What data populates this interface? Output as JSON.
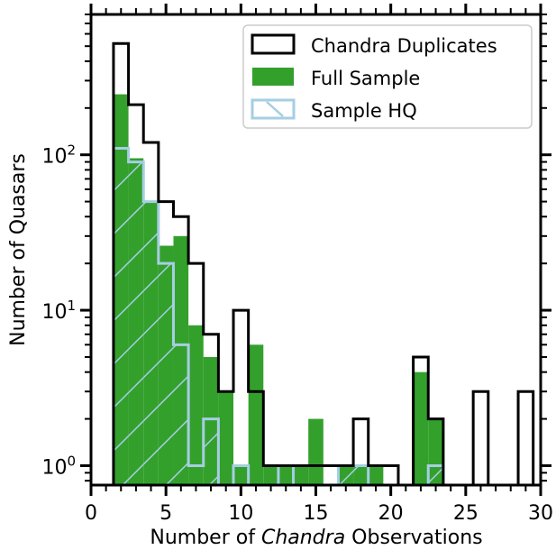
{
  "chart_data": {
    "type": "bar",
    "xlabel_parts": [
      "Number of ",
      "Chandra",
      " Observations"
    ],
    "ylabel": "Number of Quasars",
    "xlim": [
      0,
      30
    ],
    "ylim": [
      0.75,
      800
    ],
    "yscale": "log",
    "grid": false,
    "legend_position": "top-right",
    "bin_width": 1,
    "x_ticks": [
      0,
      5,
      10,
      15,
      20,
      25,
      30
    ],
    "x_tick_labels": [
      "0",
      "5",
      "10",
      "15",
      "20",
      "25",
      "30"
    ],
    "y_tick_labels": [
      {
        "base": "10",
        "exp": "0",
        "value": 1
      },
      {
        "base": "10",
        "exp": "1",
        "value": 10
      },
      {
        "base": "10",
        "exp": "2",
        "value": 100
      }
    ],
    "series": [
      {
        "name": "Chandra Duplicates",
        "style": "step-outline",
        "color": "#000000",
        "bin_starts": [
          1.5,
          2.5,
          3.5,
          4.5,
          5.5,
          6.5,
          7.5,
          8.5,
          9.5,
          10.5,
          11.5,
          12.5,
          13.5,
          14.5,
          15.5,
          16.5,
          17.5,
          18.5,
          19.5,
          20.5,
          21.5,
          22.5,
          23.5,
          24.5,
          25.5,
          26.5,
          27.5,
          28.5
        ],
        "values": [
          520,
          210,
          120,
          50,
          40,
          20,
          7,
          3,
          10,
          3,
          1,
          1,
          1,
          1,
          1,
          1,
          2,
          1,
          1,
          0,
          5,
          2,
          0,
          0,
          3,
          0,
          0,
          3
        ]
      },
      {
        "name": "Full Sample",
        "style": "filled",
        "color": "#33a02c",
        "bin_starts": [
          1.5,
          2.5,
          3.5,
          4.5,
          5.5,
          6.5,
          7.5,
          8.5,
          9.5,
          10.5,
          11.5,
          12.5,
          13.5,
          14.5,
          15.5,
          16.5,
          17.5,
          18.5,
          19.5,
          20.5,
          21.5,
          22.5,
          23.5,
          24.5,
          25.5,
          26.5,
          27.5,
          28.5
        ],
        "values": [
          245,
          95,
          50,
          26,
          30,
          8,
          5,
          3,
          1,
          6,
          1,
          1,
          1,
          2,
          0,
          1,
          1,
          1,
          0,
          0,
          4,
          2,
          0,
          0,
          0,
          0,
          0,
          0
        ]
      },
      {
        "name": "Sample HQ",
        "style": "hatched-outline",
        "color": "#a6cee3",
        "bin_starts": [
          1.5,
          2.5,
          3.5,
          4.5,
          5.5,
          6.5,
          7.5,
          8.5,
          9.5,
          10.5,
          11.5,
          12.5,
          13.5,
          14.5,
          15.5,
          16.5,
          17.5,
          18.5,
          19.5,
          20.5,
          21.5,
          22.5,
          23.5,
          24.5,
          25.5,
          26.5,
          27.5,
          28.5
        ],
        "values": [
          110,
          90,
          50,
          20,
          6,
          1,
          2,
          0,
          1,
          0,
          0,
          1,
          0,
          0,
          0,
          1,
          1,
          0,
          0,
          0,
          0,
          1,
          0,
          0,
          0,
          0,
          0,
          0
        ]
      }
    ]
  }
}
